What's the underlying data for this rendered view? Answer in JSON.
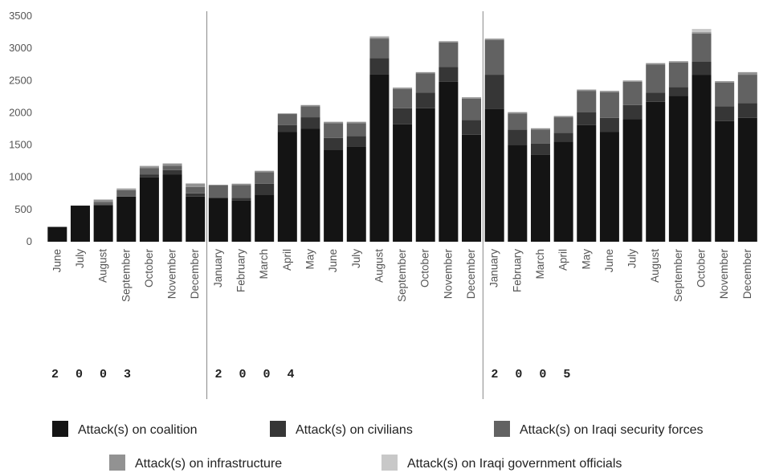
{
  "chart_data": {
    "type": "bar",
    "stacked": true,
    "ylim": [
      0,
      3500
    ],
    "yticks": [
      0,
      500,
      1000,
      1500,
      2000,
      2500,
      3000,
      3500
    ],
    "grid": false,
    "legend_position": "bottom",
    "year_groups": [
      {
        "label": "2 0 0 3",
        "start": 0,
        "end": 6
      },
      {
        "label": "2 0 0 4",
        "start": 7,
        "end": 18
      },
      {
        "label": "2 0 0 5",
        "start": 19,
        "end": 30
      }
    ],
    "categories": [
      "June",
      "July",
      "August",
      "September",
      "October",
      "November",
      "December",
      "January",
      "February",
      "March",
      "April",
      "May",
      "June",
      "July",
      "August",
      "September",
      "October",
      "November",
      "December",
      "January",
      "February",
      "March",
      "April",
      "May",
      "June",
      "July",
      "August",
      "September",
      "October",
      "November",
      "December"
    ],
    "series": [
      {
        "name": "Attack(s) on coalition",
        "color": "#141414",
        "values": [
          230,
          560,
          570,
          700,
          1000,
          1040,
          700,
          680,
          640,
          730,
          1700,
          1750,
          1430,
          1470,
          2600,
          1820,
          2070,
          2480,
          1660,
          2060,
          1500,
          1350,
          1550,
          1810,
          1700,
          1900,
          2170,
          2260,
          2590,
          1870,
          1920
        ]
      },
      {
        "name": "Attack(s) on civilians",
        "color": "#363636",
        "values": [
          0,
          0,
          0,
          0,
          40,
          70,
          50,
          0,
          40,
          170,
          110,
          180,
          180,
          170,
          250,
          250,
          240,
          230,
          230,
          530,
          240,
          170,
          140,
          200,
          220,
          220,
          140,
          140,
          200,
          230,
          230
        ]
      },
      {
        "name": "Attack(s) on Iraqi security forces",
        "color": "#626262",
        "values": [
          0,
          0,
          50,
          100,
          100,
          70,
          100,
          200,
          200,
          180,
          170,
          170,
          230,
          200,
          300,
          300,
          300,
          380,
          330,
          540,
          250,
          220,
          240,
          330,
          400,
          360,
          440,
          380,
          440,
          370,
          440
        ]
      },
      {
        "name": "Attack(s) on infrastructure",
        "color": "#929292",
        "values": [
          0,
          0,
          30,
          20,
          30,
          30,
          50,
          0,
          20,
          20,
          10,
          20,
          20,
          20,
          20,
          20,
          20,
          20,
          20,
          20,
          20,
          20,
          20,
          20,
          20,
          20,
          20,
          20,
          20,
          20,
          40
        ]
      },
      {
        "name": "Attack(s) on Iraqi government officials",
        "color": "#c8c8c8",
        "values": [
          0,
          0,
          10,
          10,
          10,
          10,
          10,
          0,
          0,
          0,
          0,
          0,
          0,
          0,
          20,
          0,
          0,
          0,
          0,
          0,
          0,
          0,
          0,
          0,
          0,
          0,
          0,
          0,
          50,
          0,
          0
        ]
      }
    ]
  }
}
